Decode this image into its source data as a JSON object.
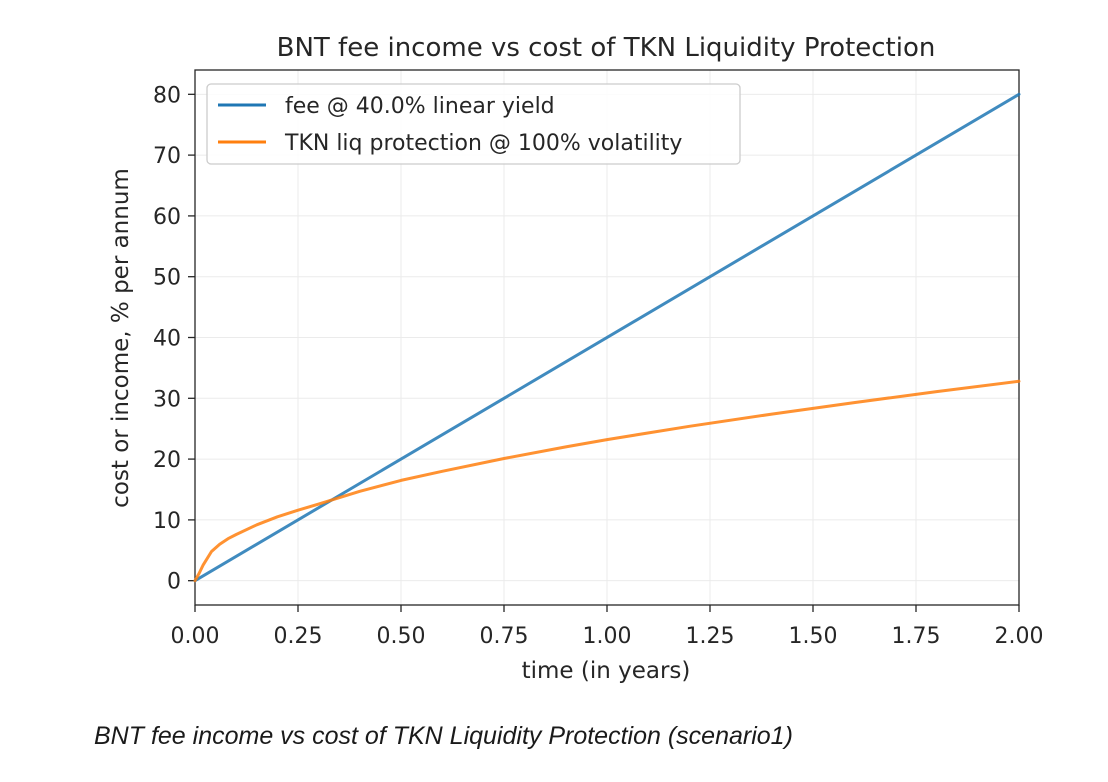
{
  "chart_data": {
    "type": "line",
    "title": "BNT fee income vs cost of TKN Liquidity Protection",
    "xlabel": "time (in years)",
    "ylabel": "cost or income, % per annum",
    "xlim": [
      0,
      2
    ],
    "ylim": [
      -4,
      84
    ],
    "x_ticks": [
      "0.00",
      "0.25",
      "0.50",
      "0.75",
      "1.00",
      "1.25",
      "1.50",
      "1.75",
      "2.00"
    ],
    "y_ticks": [
      "0",
      "10",
      "20",
      "30",
      "40",
      "50",
      "60",
      "70",
      "80"
    ],
    "grid": true,
    "legend_position": "upper-left",
    "series": [
      {
        "name": "fee @ 40.0% linear yield",
        "color": "#1f77b4",
        "x": [
          0,
          2
        ],
        "y": [
          0,
          80
        ]
      },
      {
        "name": "TKN liq protection @ 100% volatility",
        "color": "#ff7f0e",
        "x": [
          0,
          0.01,
          0.02,
          0.04,
          0.06,
          0.08,
          0.1,
          0.15,
          0.2,
          0.25,
          0.3,
          0.4,
          0.5,
          0.6,
          0.75,
          0.9,
          1.0,
          1.2,
          1.4,
          1.6,
          1.8,
          2.0
        ],
        "y": [
          0,
          1.2,
          2.6,
          4.8,
          6.0,
          6.9,
          7.6,
          9.2,
          10.5,
          11.6,
          12.6,
          14.7,
          16.5,
          18.0,
          20.1,
          22.0,
          23.2,
          25.4,
          27.4,
          29.3,
          31.1,
          32.8
        ]
      }
    ]
  },
  "caption": "BNT fee income vs cost of TKN Liquidity Protection (scenario1)"
}
